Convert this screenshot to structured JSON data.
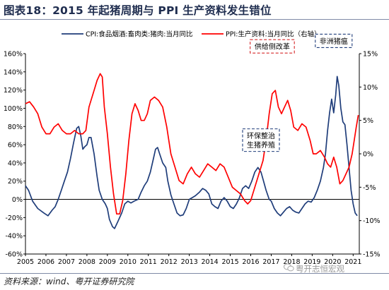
{
  "title": "图表18：2015 年起猪周期与 PPI 生产资料发生错位",
  "source": "资料来源：wind、粤开证券研究院",
  "watermark": "粤开志恒宏观",
  "chart_data": {
    "type": "line",
    "x_ticks": [
      "2005",
      "2006",
      "2007",
      "2008",
      "2009",
      "2010",
      "2011",
      "2012",
      "2013",
      "2014",
      "2015",
      "2016",
      "2017",
      "2018",
      "2019",
      "2020",
      "2021"
    ],
    "y_left": {
      "ticks": [
        "160%",
        "140%",
        "120%",
        "100%",
        "80%",
        "60%",
        "40%",
        "20%",
        "0%",
        "-20%",
        "-40%",
        "-60%"
      ],
      "ylim": [
        -0.6,
        1.6
      ]
    },
    "y_right": {
      "ticks": [
        "15%",
        "10%",
        "5%",
        "0%",
        "-5%",
        "-10%",
        "-15%"
      ],
      "ylim": [
        -0.15,
        0.15
      ]
    },
    "series": [
      {
        "name": "CPI:食品烟酒:畜肉类:猪肉:当月同比",
        "axis": "left",
        "color": "#1f3d7a",
        "points": [
          [
            2005.0,
            0.15
          ],
          [
            2005.15,
            0.1
          ],
          [
            2005.35,
            -0.02
          ],
          [
            2005.6,
            -0.1
          ],
          [
            2005.9,
            -0.15
          ],
          [
            2006.1,
            -0.18
          ],
          [
            2006.3,
            -0.12
          ],
          [
            2006.45,
            -0.08
          ],
          [
            2006.6,
            0.0
          ],
          [
            2006.75,
            0.1
          ],
          [
            2006.9,
            0.2
          ],
          [
            2007.05,
            0.3
          ],
          [
            2007.2,
            0.45
          ],
          [
            2007.35,
            0.62
          ],
          [
            2007.5,
            0.78
          ],
          [
            2007.6,
            0.8
          ],
          [
            2007.7,
            0.7
          ],
          [
            2007.8,
            0.55
          ],
          [
            2007.9,
            0.58
          ],
          [
            2008.0,
            0.6
          ],
          [
            2008.1,
            0.68
          ],
          [
            2008.2,
            0.68
          ],
          [
            2008.35,
            0.5
          ],
          [
            2008.5,
            0.25
          ],
          [
            2008.6,
            0.1
          ],
          [
            2008.75,
            0.0
          ],
          [
            2008.9,
            -0.05
          ],
          [
            2009.0,
            -0.1
          ],
          [
            2009.1,
            -0.22
          ],
          [
            2009.25,
            -0.3
          ],
          [
            2009.35,
            -0.32
          ],
          [
            2009.5,
            -0.25
          ],
          [
            2009.7,
            -0.15
          ],
          [
            2009.85,
            -0.05
          ],
          [
            2010.0,
            -0.02
          ],
          [
            2010.15,
            -0.04
          ],
          [
            2010.3,
            -0.02
          ],
          [
            2010.5,
            0.0
          ],
          [
            2010.65,
            0.08
          ],
          [
            2010.8,
            0.15
          ],
          [
            2010.95,
            0.2
          ],
          [
            2011.1,
            0.3
          ],
          [
            2011.25,
            0.45
          ],
          [
            2011.35,
            0.55
          ],
          [
            2011.45,
            0.57
          ],
          [
            2011.55,
            0.5
          ],
          [
            2011.7,
            0.4
          ],
          [
            2011.85,
            0.35
          ],
          [
            2011.95,
            0.2
          ],
          [
            2012.1,
            0.05
          ],
          [
            2012.25,
            -0.05
          ],
          [
            2012.4,
            -0.15
          ],
          [
            2012.55,
            -0.18
          ],
          [
            2012.7,
            -0.17
          ],
          [
            2012.85,
            -0.1
          ],
          [
            2013.0,
            0.0
          ],
          [
            2013.15,
            0.02
          ],
          [
            2013.3,
            0.04
          ],
          [
            2013.5,
            0.08
          ],
          [
            2013.65,
            0.12
          ],
          [
            2013.8,
            0.1
          ],
          [
            2013.95,
            0.06
          ],
          [
            2014.1,
            -0.05
          ],
          [
            2014.25,
            -0.08
          ],
          [
            2014.4,
            -0.1
          ],
          [
            2014.55,
            -0.02
          ],
          [
            2014.7,
            0.02
          ],
          [
            2014.85,
            -0.02
          ],
          [
            2015.0,
            -0.08
          ],
          [
            2015.15,
            -0.1
          ],
          [
            2015.3,
            -0.05
          ],
          [
            2015.45,
            0.02
          ],
          [
            2015.6,
            0.12
          ],
          [
            2015.75,
            0.15
          ],
          [
            2015.9,
            0.12
          ],
          [
            2016.05,
            0.2
          ],
          [
            2016.2,
            0.3
          ],
          [
            2016.35,
            0.35
          ],
          [
            2016.5,
            0.3
          ],
          [
            2016.6,
            0.22
          ],
          [
            2016.75,
            0.1
          ],
          [
            2016.9,
            0.0
          ],
          [
            2017.0,
            -0.02
          ],
          [
            2017.15,
            -0.1
          ],
          [
            2017.3,
            -0.15
          ],
          [
            2017.45,
            -0.18
          ],
          [
            2017.6,
            -0.14
          ],
          [
            2017.75,
            -0.1
          ],
          [
            2017.9,
            -0.08
          ],
          [
            2018.05,
            -0.12
          ],
          [
            2018.2,
            -0.14
          ],
          [
            2018.35,
            -0.15
          ],
          [
            2018.5,
            -0.1
          ],
          [
            2018.65,
            -0.05
          ],
          [
            2018.8,
            -0.02
          ],
          [
            2018.95,
            -0.03
          ],
          [
            2019.1,
            0.02
          ],
          [
            2019.25,
            0.1
          ],
          [
            2019.4,
            0.2
          ],
          [
            2019.55,
            0.35
          ],
          [
            2019.65,
            0.5
          ],
          [
            2019.75,
            0.75
          ],
          [
            2019.85,
            0.95
          ],
          [
            2019.95,
            1.1
          ],
          [
            2020.05,
            0.95
          ],
          [
            2020.15,
            1.15
          ],
          [
            2020.22,
            1.35
          ],
          [
            2020.3,
            1.25
          ],
          [
            2020.4,
            1.0
          ],
          [
            2020.5,
            0.85
          ],
          [
            2020.6,
            0.82
          ],
          [
            2020.7,
            0.6
          ],
          [
            2020.8,
            0.35
          ],
          [
            2020.9,
            0.1
          ],
          [
            2021.0,
            -0.05
          ],
          [
            2021.1,
            -0.15
          ],
          [
            2021.2,
            -0.18
          ]
        ]
      },
      {
        "name": "PPI:生产资料:当月同比（右轴）",
        "axis": "right",
        "color": "#ff0000",
        "points": [
          [
            2005.0,
            0.075
          ],
          [
            2005.2,
            0.078
          ],
          [
            2005.4,
            0.07
          ],
          [
            2005.6,
            0.06
          ],
          [
            2005.8,
            0.04
          ],
          [
            2006.0,
            0.03
          ],
          [
            2006.2,
            0.03
          ],
          [
            2006.4,
            0.04
          ],
          [
            2006.6,
            0.045
          ],
          [
            2006.8,
            0.035
          ],
          [
            2007.0,
            0.03
          ],
          [
            2007.2,
            0.03
          ],
          [
            2007.4,
            0.035
          ],
          [
            2007.6,
            0.03
          ],
          [
            2007.8,
            0.03
          ],
          [
            2007.95,
            0.035
          ],
          [
            2008.1,
            0.07
          ],
          [
            2008.3,
            0.09
          ],
          [
            2008.5,
            0.11
          ],
          [
            2008.65,
            0.12
          ],
          [
            2008.75,
            0.115
          ],
          [
            2008.85,
            0.07
          ],
          [
            2009.0,
            0.03
          ],
          [
            2009.15,
            -0.02
          ],
          [
            2009.3,
            -0.06
          ],
          [
            2009.45,
            -0.09
          ],
          [
            2009.6,
            -0.09
          ],
          [
            2009.75,
            -0.07
          ],
          [
            2009.9,
            -0.03
          ],
          [
            2010.05,
            0.02
          ],
          [
            2010.2,
            0.06
          ],
          [
            2010.35,
            0.075
          ],
          [
            2010.5,
            0.065
          ],
          [
            2010.65,
            0.05
          ],
          [
            2010.8,
            0.05
          ],
          [
            2010.95,
            0.06
          ],
          [
            2011.1,
            0.08
          ],
          [
            2011.3,
            0.085
          ],
          [
            2011.5,
            0.08
          ],
          [
            2011.7,
            0.07
          ],
          [
            2011.9,
            0.04
          ],
          [
            2012.1,
            0.0
          ],
          [
            2012.3,
            -0.02
          ],
          [
            2012.5,
            -0.04
          ],
          [
            2012.7,
            -0.045
          ],
          [
            2012.9,
            -0.03
          ],
          [
            2013.1,
            -0.02
          ],
          [
            2013.3,
            -0.03
          ],
          [
            2013.5,
            -0.035
          ],
          [
            2013.7,
            -0.025
          ],
          [
            2013.9,
            -0.015
          ],
          [
            2014.1,
            -0.02
          ],
          [
            2014.3,
            -0.025
          ],
          [
            2014.5,
            -0.015
          ],
          [
            2014.7,
            -0.02
          ],
          [
            2014.9,
            -0.035
          ],
          [
            2015.1,
            -0.05
          ],
          [
            2015.3,
            -0.055
          ],
          [
            2015.5,
            -0.06
          ],
          [
            2015.7,
            -0.07
          ],
          [
            2015.85,
            -0.075
          ],
          [
            2016.0,
            -0.07
          ],
          [
            2016.2,
            -0.05
          ],
          [
            2016.4,
            -0.03
          ],
          [
            2016.6,
            -0.01
          ],
          [
            2016.75,
            0.02
          ],
          [
            2016.9,
            0.06
          ],
          [
            2017.05,
            0.09
          ],
          [
            2017.2,
            0.095
          ],
          [
            2017.35,
            0.07
          ],
          [
            2017.5,
            0.06
          ],
          [
            2017.65,
            0.07
          ],
          [
            2017.8,
            0.08
          ],
          [
            2017.95,
            0.065
          ],
          [
            2018.1,
            0.04
          ],
          [
            2018.3,
            0.035
          ],
          [
            2018.5,
            0.045
          ],
          [
            2018.7,
            0.04
          ],
          [
            2018.9,
            0.02
          ],
          [
            2019.05,
            0.0
          ],
          [
            2019.2,
            0.0
          ],
          [
            2019.4,
            0.005
          ],
          [
            2019.6,
            -0.005
          ],
          [
            2019.75,
            -0.015
          ],
          [
            2019.9,
            -0.02
          ],
          [
            2020.05,
            -0.005
          ],
          [
            2020.2,
            -0.02
          ],
          [
            2020.35,
            -0.045
          ],
          [
            2020.5,
            -0.04
          ],
          [
            2020.65,
            -0.03
          ],
          [
            2020.8,
            -0.02
          ],
          [
            2020.95,
            0.0
          ],
          [
            2021.05,
            0.02
          ],
          [
            2021.15,
            0.04
          ],
          [
            2021.25,
            0.058
          ]
        ]
      }
    ],
    "annotations": [
      {
        "text": "供给侧改革",
        "lines": [
          "供给侧改革"
        ],
        "style": "red-dash",
        "x": 2017.05,
        "y": 1.68
      },
      {
        "text": "非洲猪瘟",
        "lines": [
          "非洲猪瘟"
        ],
        "style": "blue-dash",
        "x": 2020.05,
        "y": 1.74
      },
      {
        "text": "环保整治生猪养殖",
        "lines": [
          "环保整治",
          "生猪养殖"
        ],
        "style": "blue-dash",
        "x": 2016.5,
        "y": 0.65
      }
    ]
  }
}
